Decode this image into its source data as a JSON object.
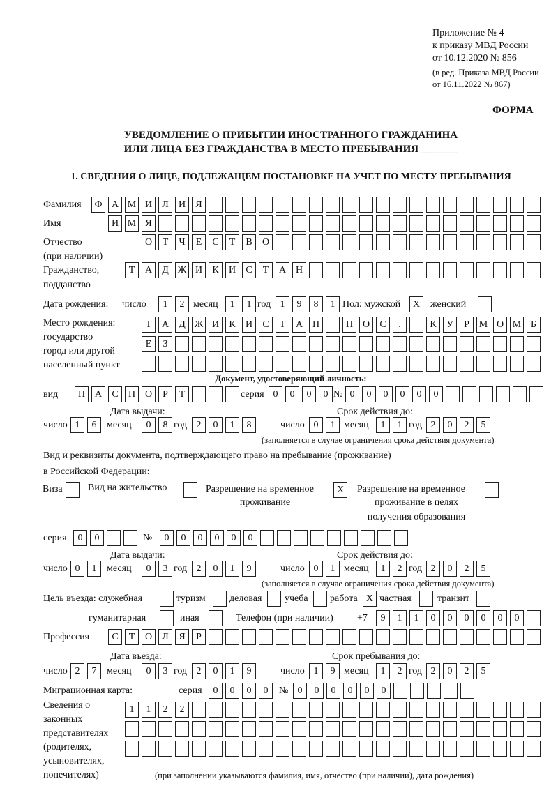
{
  "header": {
    "appendix": "Приложение № 4",
    "order": "к приказу МВД России",
    "order_date": "от 10.12.2020 № 856",
    "edition1": "(в ред. Приказа МВД России",
    "edition2": "от 16.11.2022 № 867)",
    "form": "ФОРМА",
    "title1": "УВЕДОМЛЕНИЕ О ПРИБЫТИИ ИНОСТРАННОГО ГРАЖДАНИНА",
    "title2": "ИЛИ ЛИЦА БЕЗ ГРАЖДАНСТВА В МЕСТО ПРЕБЫВАНИЯ _______",
    "section1": "1. СВЕДЕНИЯ О ЛИЦЕ, ПОДЛЕЖАЩЕМ ПОСТАНОВКЕ НА УЧЕТ ПО МЕСТУ ПРЕБЫВАНИЯ"
  },
  "labels": {
    "surname": "Фамилия",
    "name": "Имя",
    "patronymic": "Отчество",
    "patronymic_note": "(при наличии)",
    "citizenship": "Гражданство,",
    "citizenship2": "подданство",
    "birth_date": "Дата рождения:",
    "day": "число",
    "month": "месяц",
    "year": "год",
    "sex": "Пол: мужской",
    "female": "женский",
    "birth_place": "Место рождения:",
    "state": "государство",
    "city": "город или другой",
    "locality": "населенный пункт",
    "id_doc": "Документ, удостоверяющий личность:",
    "kind": "вид",
    "series": "серия",
    "number": "№",
    "issue_date": "Дата выдачи:",
    "valid_until": "Срок действия до:",
    "valid_note": "(заполняется в случае ограничения срока действия документа)",
    "stay_doc1": "Вид и реквизиты документа, подтверждающего право на пребывание (проживание)",
    "stay_doc2": "в Российской Федерации:",
    "visa": "Виза",
    "residence": "Вид на жительство",
    "temp1": "Разрешение на временное",
    "temp2": "проживание",
    "tempedu1": "Разрешение на временное",
    "tempedu2": "проживание в целях",
    "tempedu3": "получения образования",
    "purpose": "Цель въезда: служебная",
    "tourism": "туризм",
    "business": "деловая",
    "study": "учеба",
    "work": "работа",
    "private": "частная",
    "transit": "транзит",
    "humanitarian": "гуманитарная",
    "other": "иная",
    "phone": "Телефон (при наличии)",
    "phone_prefix": "+7",
    "profession": "Профессия",
    "entry_date": "Дата въезда:",
    "stay_until": "Срок пребывания до:",
    "migration_card": "Миграционная карта:",
    "reps1": "Сведения о",
    "reps2": "законных",
    "reps3": "представителях",
    "reps4": "(родителях,",
    "reps5": "усыновителях,",
    "reps6": "попечителях)",
    "reps_note": "(при заполнении указываются фамилия, имя, отчество (при наличии), дата рождения)"
  },
  "person": {
    "surname": "ФАМИЛИЯ",
    "name": "ИМЯ",
    "patronymic": "ОТЧЕСТВО",
    "citizenship": "ТАДЖИКИСТАН",
    "birth_day": "12",
    "birth_month": "11",
    "birth_year": "1981",
    "sex_male": "X",
    "sex_female": "",
    "birth_place1": "ТАДЖИКИСТАН ПОС. КУРМОМБ",
    "birth_place2": "ЕЗ",
    "birth_place3": "",
    "id_kind": "ПАСПОРТ",
    "id_series": "0000",
    "id_number": "000000",
    "id_issue_day": "16",
    "id_issue_month": "08",
    "id_issue_year": "2018",
    "id_valid_day": "01",
    "id_valid_month": "11",
    "id_valid_year": "2025",
    "visa": "",
    "residence_permit": "",
    "temp_residence": "X",
    "temp_residence_edu": "",
    "stay_series": "00",
    "stay_number": "000000",
    "stay_issue_day": "01",
    "stay_issue_month": "03",
    "stay_issue_year": "2019",
    "stay_valid_day": "01",
    "stay_valid_month": "12",
    "stay_valid_year": "2025",
    "purpose_service": "",
    "purpose_tourism": "",
    "purpose_business": "",
    "purpose_study": "",
    "purpose_work": "X",
    "purpose_private": "",
    "purpose_transit": "",
    "purpose_humanitarian": "",
    "purpose_other": "",
    "phone": "911000000",
    "profession": "СТОЛЯР",
    "entry_day": "27",
    "entry_month": "03",
    "entry_year": "2019",
    "stay_until_day": "19",
    "stay_until_month": "12",
    "stay_until_year": "2025",
    "mc_series": "0000",
    "mc_number": "000000",
    "reps1": "1122",
    "reps2": "",
    "reps3": ""
  }
}
